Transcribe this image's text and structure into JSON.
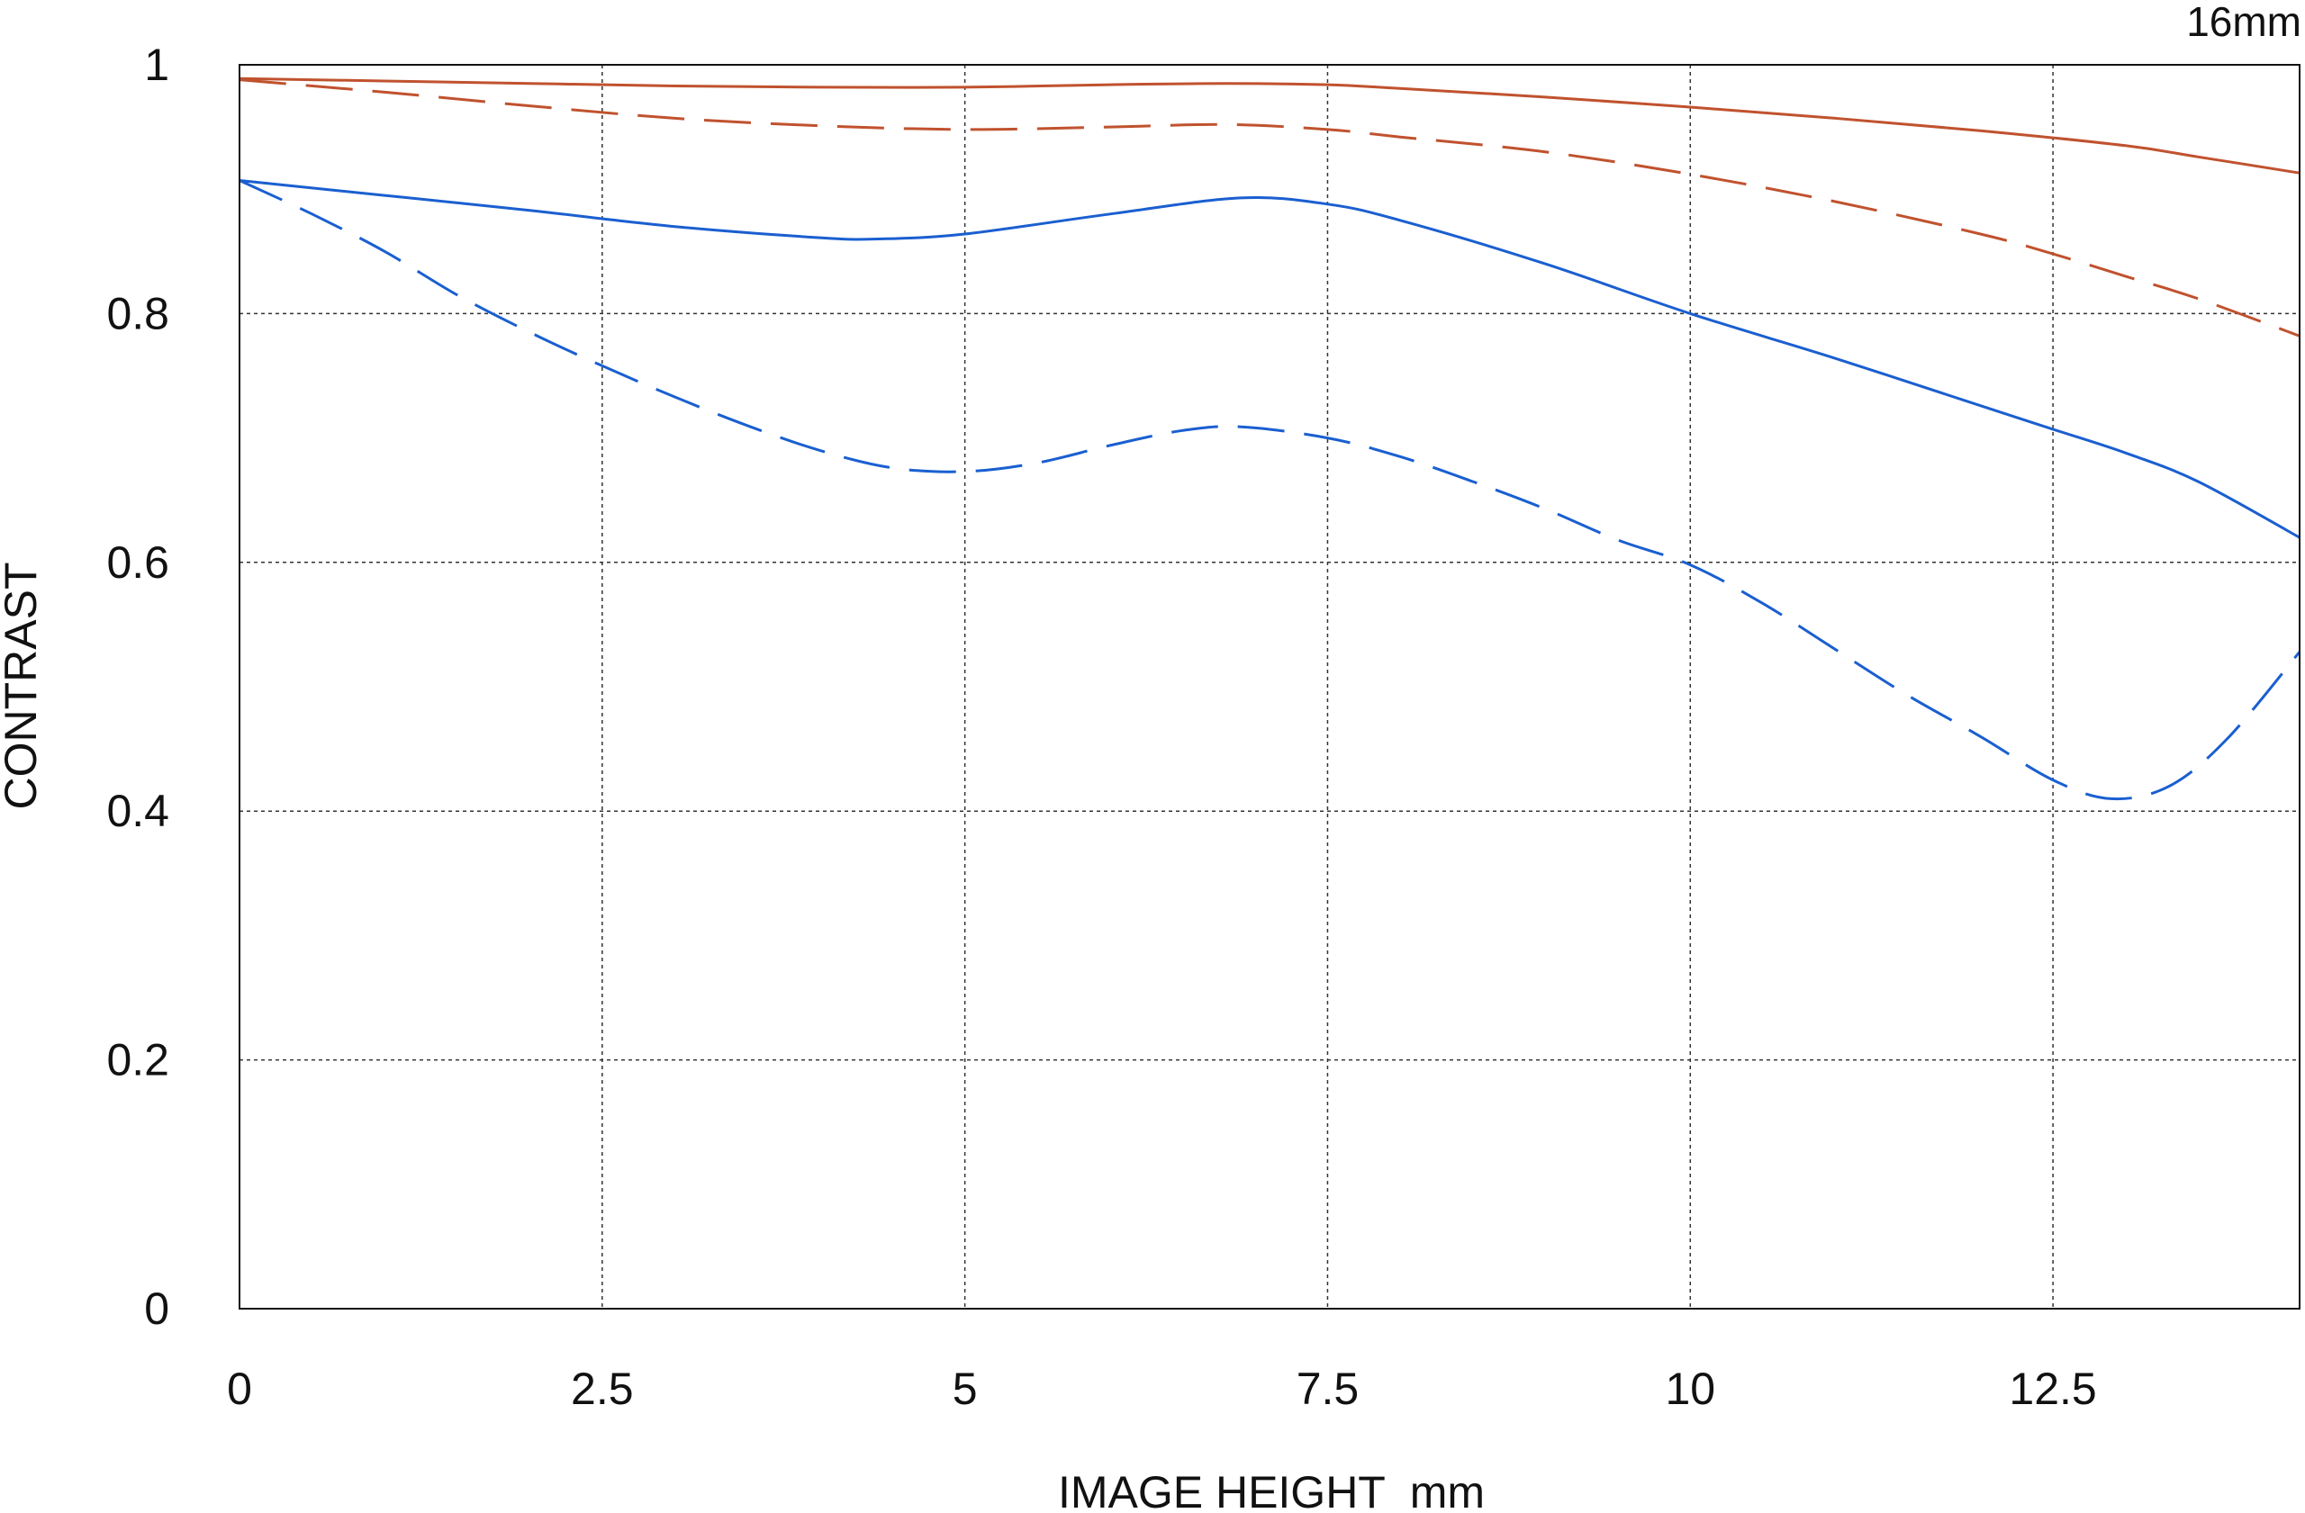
{
  "chart_data": {
    "type": "line",
    "title": "16mm",
    "xlabel": "IMAGE HEIGHT  mm",
    "ylabel": "CONTRAST",
    "xlim": [
      0,
      14.2
    ],
    "ylim": [
      0,
      1
    ],
    "x_ticks": [
      0,
      2.5,
      5,
      7.5,
      10,
      12.5
    ],
    "x_tick_labels": [
      "0",
      "2.5",
      "5",
      "7.5",
      "10",
      "12.5"
    ],
    "y_ticks": [
      0,
      0.2,
      0.4,
      0.6,
      0.8,
      1
    ],
    "y_tick_labels": [
      "0",
      "0.2",
      "0.4",
      "0.6",
      "0.8",
      "1"
    ],
    "grid": true,
    "legend": "none",
    "colors": {
      "red": "#c0522e",
      "blue": "#1a5fd0",
      "grid": "#333333",
      "axis": "#111111"
    },
    "series": [
      {
        "color": "#c0522e",
        "dash": "solid",
        "x": [
          0,
          1,
          2,
          3,
          4,
          5,
          6,
          6.8,
          7.5,
          8,
          9,
          10,
          11,
          12,
          13,
          13.5,
          14.2
        ],
        "y": [
          0.989,
          0.987,
          0.985,
          0.983,
          0.982,
          0.982,
          0.984,
          0.985,
          0.984,
          0.981,
          0.974,
          0.966,
          0.957,
          0.947,
          0.935,
          0.926,
          0.913
        ]
      },
      {
        "color": "#c0522e",
        "dash": "dashed",
        "x": [
          0,
          1,
          2,
          3,
          4,
          5,
          6,
          6.8,
          7.5,
          8,
          9,
          10,
          11,
          12,
          12.5,
          13,
          13.5,
          14.2
        ],
        "y": [
          0.988,
          0.978,
          0.967,
          0.957,
          0.951,
          0.948,
          0.95,
          0.952,
          0.948,
          0.942,
          0.93,
          0.912,
          0.89,
          0.864,
          0.848,
          0.83,
          0.812,
          0.782
        ]
      },
      {
        "color": "#1a5fd0",
        "dash": "solid",
        "x": [
          0,
          1,
          2,
          3,
          4,
          4.4,
          5,
          6,
          6.9,
          7.5,
          8,
          9,
          10,
          11,
          12,
          12.5,
          13,
          13.5,
          14.2
        ],
        "y": [
          0.907,
          0.895,
          0.883,
          0.87,
          0.861,
          0.86,
          0.864,
          0.88,
          0.893,
          0.888,
          0.875,
          0.84,
          0.8,
          0.764,
          0.726,
          0.707,
          0.688,
          0.665,
          0.62
        ]
      },
      {
        "color": "#1a5fd0",
        "dash": "dashed",
        "x": [
          0,
          0.5,
          1,
          1.5,
          2,
          2.5,
          3,
          3.5,
          4,
          4.5,
          5,
          5.5,
          6,
          6.5,
          6.9,
          7.5,
          8,
          8.5,
          9,
          9.5,
          10,
          10.5,
          11,
          11.5,
          12,
          12.5,
          12.9,
          13.3,
          13.7,
          14.2
        ],
        "y": [
          0.907,
          0.88,
          0.85,
          0.815,
          0.785,
          0.758,
          0.733,
          0.71,
          0.69,
          0.676,
          0.673,
          0.68,
          0.694,
          0.706,
          0.709,
          0.7,
          0.685,
          0.665,
          0.643,
          0.618,
          0.598,
          0.567,
          0.53,
          0.493,
          0.46,
          0.425,
          0.41,
          0.42,
          0.458,
          0.528
        ]
      }
    ]
  }
}
